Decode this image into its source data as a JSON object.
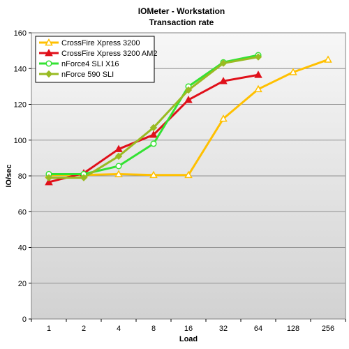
{
  "chart_data": {
    "type": "line",
    "title": "IOMeter - Workstation",
    "subtitle": "Transaction rate",
    "xlabel": "Load",
    "ylabel": "IO/sec",
    "categories": [
      "1",
      "2",
      "4",
      "8",
      "16",
      "32",
      "64",
      "128",
      "256"
    ],
    "ylim": [
      0,
      160
    ],
    "yticks": [
      0,
      20,
      40,
      60,
      80,
      100,
      120,
      140,
      160
    ],
    "grid": "horizontal",
    "legend_position": "top-left",
    "series": [
      {
        "name": "CrossFire Xpress 3200",
        "color": "#FFC000",
        "marker": "open-triangle",
        "values": [
          80.5,
          80.5,
          81,
          80.5,
          80.5,
          112,
          128.5,
          138,
          145
        ]
      },
      {
        "name": "CrossFire Xpress 3200 AM2",
        "color": "#E0101A",
        "marker": "filled-triangle",
        "values": [
          76.5,
          81.5,
          95,
          103,
          122.5,
          133,
          136.5,
          null,
          null
        ]
      },
      {
        "name": "nForce4 SLI X16",
        "color": "#33E233",
        "marker": "open-circle",
        "values": [
          81,
          81,
          85.5,
          98,
          130,
          143.5,
          147.5,
          null,
          null
        ]
      },
      {
        "name": "nForce 590 SLI",
        "color": "#99BB22",
        "marker": "filled-diamond",
        "values": [
          79,
          79,
          91,
          107,
          128,
          143,
          146.5,
          null,
          null
        ]
      }
    ]
  }
}
